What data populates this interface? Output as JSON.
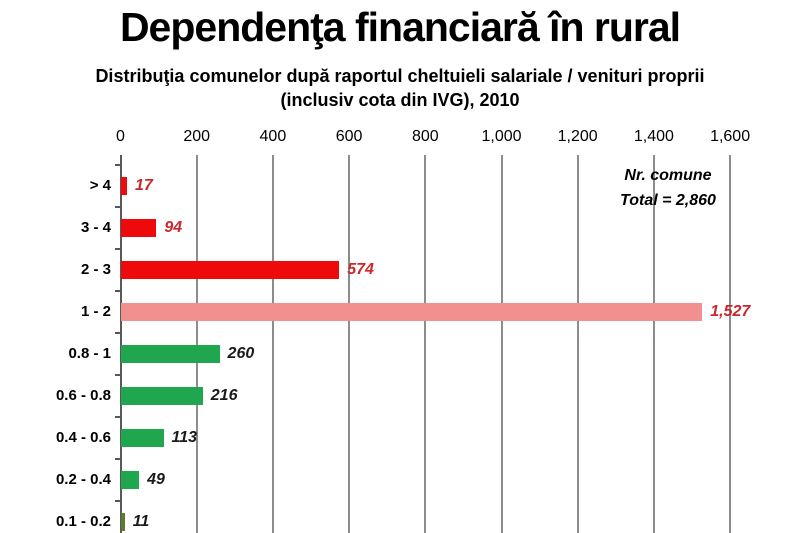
{
  "page": {
    "title": "Dependenţa financiară în rural",
    "subtitle": "Distribuţia comunelor după raportul cheltuieli salariale / venituri proprii (inclusiv cota din IVG), 2010"
  },
  "chart_data": {
    "type": "bar",
    "orientation": "horizontal",
    "title": "Dependenţa financiară în rural",
    "subtitle": "Distribuţia comunelor după raportul cheltuieli salariale / venituri proprii (inclusiv cota din IVG), 2010",
    "xlabel": "",
    "ylabel": "",
    "xlim": [
      0,
      1600
    ],
    "grid": true,
    "x_axis_position": "top",
    "x_ticks": [
      {
        "value": 0,
        "label": "0"
      },
      {
        "value": 200,
        "label": "200"
      },
      {
        "value": 400,
        "label": "400"
      },
      {
        "value": 600,
        "label": "600"
      },
      {
        "value": 800,
        "label": "800"
      },
      {
        "value": 1000,
        "label": "1,000"
      },
      {
        "value": 1200,
        "label": "1,200"
      },
      {
        "value": 1400,
        "label": "1,400"
      },
      {
        "value": 1600,
        "label": "1,600"
      }
    ],
    "categories": [
      "> 4",
      "3 - 4",
      "2 - 3",
      "1 - 2",
      "0.8 - 1",
      "0.6 - 0.8",
      "0.4 - 0.6",
      "0.2 - 0.4",
      "0.1 - 0.2"
    ],
    "values": [
      17,
      94,
      574,
      1527,
      260,
      216,
      113,
      49,
      11
    ],
    "value_labels": [
      "17",
      "94",
      "574",
      "1,527",
      "260",
      "216",
      "113",
      "49",
      "11"
    ],
    "bar_colors": [
      "#ee0a0a",
      "#ee0a0a",
      "#ee0a0a",
      "#f29090",
      "#1fa64f",
      "#1fa64f",
      "#1fa64f",
      "#1fa64f",
      "#5e7a33"
    ],
    "value_label_colors": [
      "#c9282d",
      "#c9282d",
      "#c9282d",
      "#c9282d",
      "#1a1a1a",
      "#1a1a1a",
      "#1a1a1a",
      "#1a1a1a",
      "#1a1a1a"
    ],
    "annotation": {
      "lines": [
        "Nr. comune",
        "Total = 2,860"
      ]
    },
    "colors": {
      "red_bar": "#ee0a0a",
      "pink_bar": "#f29090",
      "green_bar": "#1fa64f",
      "olive_bar": "#5e7a33",
      "red_value_label": "#c9282d",
      "gridline": "#8c8c8c",
      "axis": "#595959",
      "text": "#000000",
      "background": "#ffffff"
    }
  }
}
